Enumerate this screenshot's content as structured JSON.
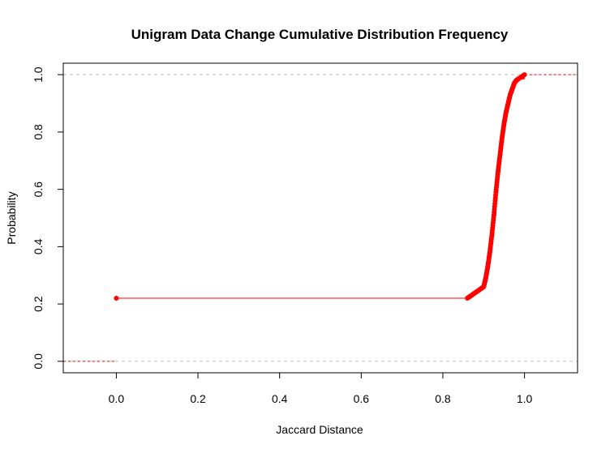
{
  "chart_data": {
    "type": "line",
    "title": "Unigram Data Change Cumulative Distribution Frequency",
    "xlabel": "Jaccard Distance",
    "ylabel": "Probability",
    "xlim": [
      -0.13,
      1.13
    ],
    "ylim": [
      -0.04,
      1.04
    ],
    "x_ticks": [
      "0.0",
      "0.2",
      "0.4",
      "0.6",
      "0.8",
      "1.0"
    ],
    "y_ticks": [
      "0.0",
      "0.2",
      "0.4",
      "0.6",
      "0.8",
      "1.0"
    ],
    "x_tick_values": [
      0.0,
      0.2,
      0.4,
      0.6,
      0.8,
      1.0
    ],
    "y_tick_values": [
      0.0,
      0.2,
      0.4,
      0.6,
      0.8,
      1.0
    ],
    "reference_lines": [
      0.0,
      1.0
    ],
    "color": "#ff0000",
    "grid_color": "#bebebe",
    "series": [
      {
        "x": [
          0.0,
          0.86,
          0.87,
          0.88,
          0.89,
          0.9,
          0.905,
          0.91,
          0.915,
          0.92,
          0.925,
          0.93,
          0.935,
          0.94,
          0.945,
          0.95,
          0.955,
          0.96,
          0.965,
          0.97,
          0.975,
          0.98,
          0.985,
          1.0
        ],
        "y": [
          0.22,
          0.22,
          0.23,
          0.24,
          0.25,
          0.26,
          0.29,
          0.33,
          0.38,
          0.44,
          0.51,
          0.59,
          0.66,
          0.72,
          0.78,
          0.83,
          0.87,
          0.9,
          0.93,
          0.95,
          0.97,
          0.98,
          0.985,
          1.0
        ]
      }
    ]
  }
}
